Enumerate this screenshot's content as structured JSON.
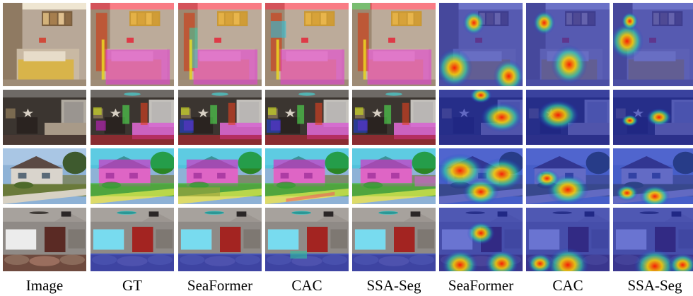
{
  "figure": {
    "columns": [
      {
        "label": "Image",
        "kind": "image"
      },
      {
        "label": "GT",
        "kind": "seg"
      },
      {
        "label": "SeaFormer",
        "kind": "seg"
      },
      {
        "label": "CAC",
        "kind": "seg"
      },
      {
        "label": "SSA-Seg",
        "kind": "seg"
      },
      {
        "label": "SeaFormer",
        "kind": "heat"
      },
      {
        "label": "CAC",
        "kind": "heat"
      },
      {
        "label": "SSA-Seg",
        "kind": "heat"
      }
    ],
    "rows": [
      {
        "scene": "bedroom-warm"
      },
      {
        "scene": "bedroom-dark"
      },
      {
        "scene": "house-exterior"
      },
      {
        "scene": "home-theater"
      }
    ]
  }
}
